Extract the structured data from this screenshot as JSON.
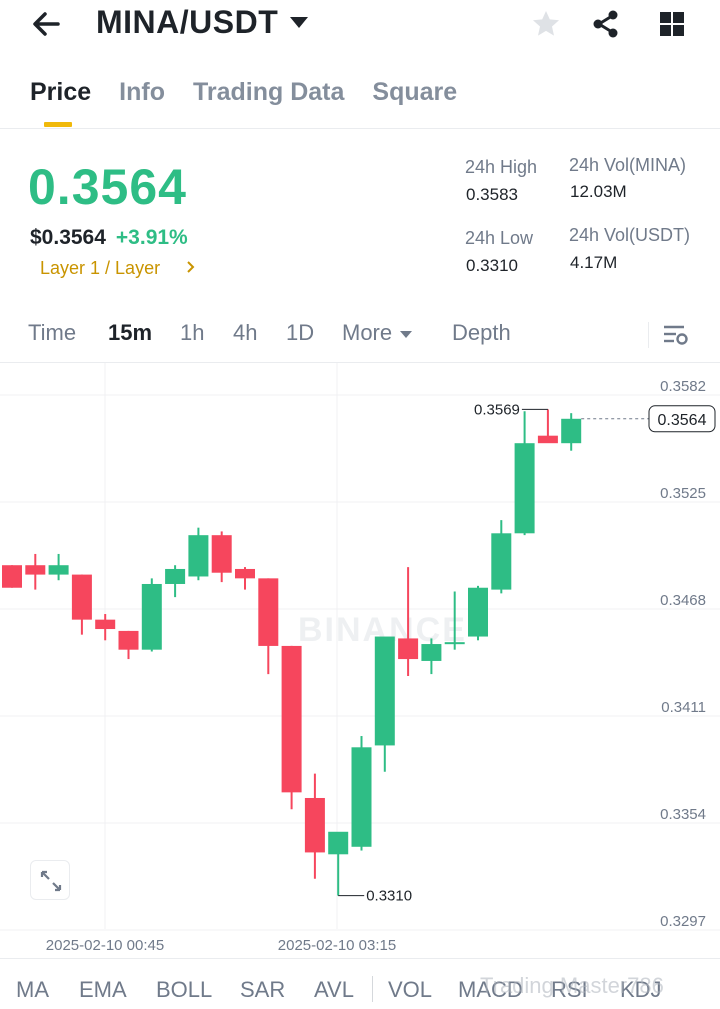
{
  "header": {
    "pair": "MINA/USDT",
    "icons": [
      "back-arrow-icon",
      "caret-down-icon",
      "star-icon",
      "share-icon",
      "grid-icon"
    ]
  },
  "tabs": [
    {
      "label": "Price",
      "active": true
    },
    {
      "label": "Info",
      "active": false
    },
    {
      "label": "Trading Data",
      "active": false
    },
    {
      "label": "Square",
      "active": false
    }
  ],
  "price": {
    "last": "0.3564",
    "usd": "$0.3564",
    "change": "+3.91%",
    "tag": "Layer 1 / Layer",
    "color_up": "#2ebd85",
    "color_down": "#f6465d",
    "tag_color": "#c99400"
  },
  "stats": {
    "high_label": "24h High",
    "high_value": "0.3583",
    "low_label": "24h Low",
    "low_value": "0.3310",
    "vol_base_label": "24h Vol(MINA)",
    "vol_base_value": "12.03M",
    "vol_quote_label": "24h Vol(USDT)",
    "vol_quote_value": "4.17M"
  },
  "intervals": {
    "time": "Time",
    "m15": "15m",
    "h1": "1h",
    "h4": "4h",
    "d1": "1D",
    "more": "More",
    "depth": "Depth",
    "active": "15m"
  },
  "chart_data": {
    "type": "candlestick",
    "watermark": "BINANCE",
    "y_ticks": [
      "0.3582",
      "0.3525",
      "0.3468",
      "0.3411",
      "0.3354",
      "0.3297"
    ],
    "x_ticks": [
      "2025-02-10 00:45",
      "2025-02-10 03:15"
    ],
    "current_price_label": "0.3564",
    "high_annotation": "0.3569",
    "low_annotation": "0.3310",
    "candles": [
      {
        "o": 0.3486,
        "h": 0.3486,
        "l": 0.3474,
        "c": 0.3474
      },
      {
        "o": 0.3486,
        "h": 0.3492,
        "l": 0.3473,
        "c": 0.3481
      },
      {
        "o": 0.3481,
        "h": 0.3492,
        "l": 0.3478,
        "c": 0.3486
      },
      {
        "o": 0.3481,
        "h": 0.3481,
        "l": 0.3449,
        "c": 0.3457
      },
      {
        "o": 0.3457,
        "h": 0.346,
        "l": 0.3446,
        "c": 0.3452
      },
      {
        "o": 0.3451,
        "h": 0.3451,
        "l": 0.3436,
        "c": 0.3441
      },
      {
        "o": 0.3441,
        "h": 0.3479,
        "l": 0.344,
        "c": 0.3476
      },
      {
        "o": 0.3476,
        "h": 0.3486,
        "l": 0.3469,
        "c": 0.3484
      },
      {
        "o": 0.348,
        "h": 0.3506,
        "l": 0.3478,
        "c": 0.3502
      },
      {
        "o": 0.3502,
        "h": 0.3504,
        "l": 0.3477,
        "c": 0.3482
      },
      {
        "o": 0.3484,
        "h": 0.3485,
        "l": 0.3473,
        "c": 0.3479
      },
      {
        "o": 0.3479,
        "h": 0.3479,
        "l": 0.3428,
        "c": 0.3443
      },
      {
        "o": 0.3443,
        "h": 0.3443,
        "l": 0.3356,
        "c": 0.3365
      },
      {
        "o": 0.3362,
        "h": 0.3375,
        "l": 0.3319,
        "c": 0.3333
      },
      {
        "o": 0.3332,
        "h": 0.3342,
        "l": 0.331,
        "c": 0.3344
      },
      {
        "o": 0.3336,
        "h": 0.3395,
        "l": 0.3334,
        "c": 0.3389
      },
      {
        "o": 0.339,
        "h": 0.3447,
        "l": 0.3376,
        "c": 0.3448
      },
      {
        "o": 0.3447,
        "h": 0.3485,
        "l": 0.3427,
        "c": 0.3436
      },
      {
        "o": 0.3435,
        "h": 0.3447,
        "l": 0.3428,
        "c": 0.3444
      },
      {
        "o": 0.3445,
        "h": 0.3472,
        "l": 0.3441,
        "c": 0.3445
      },
      {
        "o": 0.3448,
        "h": 0.3475,
        "l": 0.3446,
        "c": 0.3474
      },
      {
        "o": 0.3473,
        "h": 0.351,
        "l": 0.3471,
        "c": 0.3503
      },
      {
        "o": 0.3503,
        "h": 0.3568,
        "l": 0.3502,
        "c": 0.3551
      },
      {
        "o": 0.3555,
        "h": 0.3569,
        "l": 0.3553,
        "c": 0.3551
      },
      {
        "o": 0.3551,
        "h": 0.3567,
        "l": 0.3547,
        "c": 0.3564
      }
    ]
  },
  "indicators": [
    "MA",
    "EMA",
    "BOLL",
    "SAR",
    "AVL",
    "VOL",
    "MACD",
    "RSI",
    "KDJ"
  ],
  "watermark_footer": "Trading Master786"
}
